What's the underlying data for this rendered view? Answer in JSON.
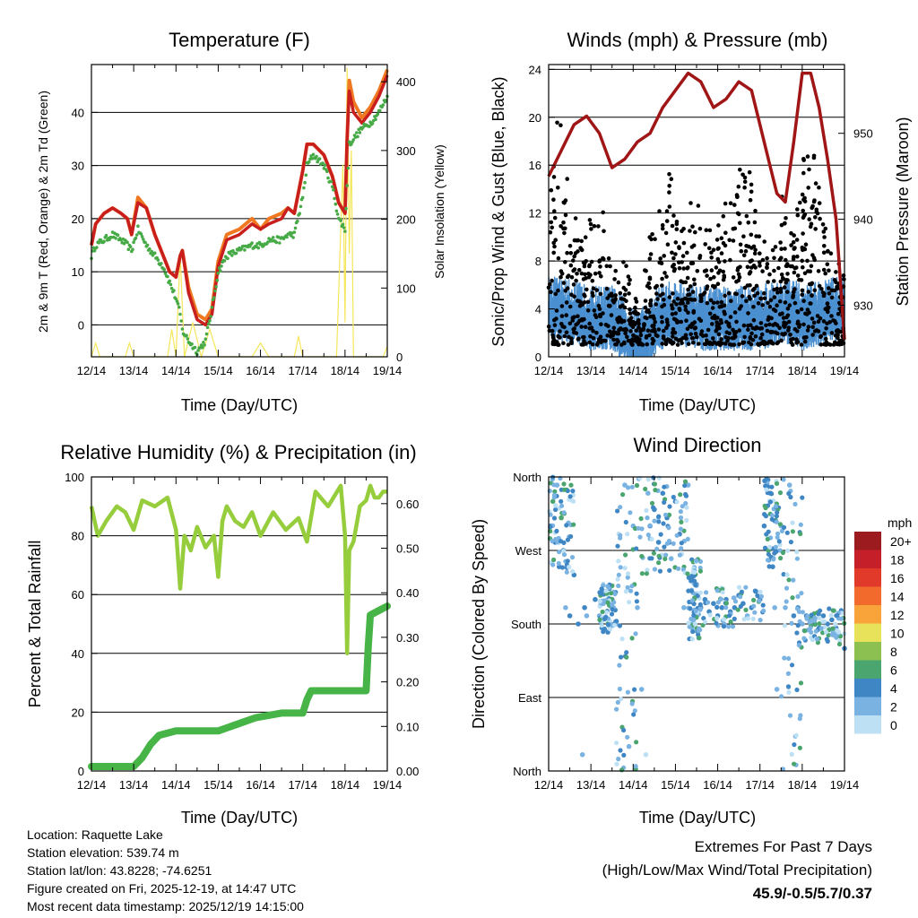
{
  "colors": {
    "temp2m": "#c81e1e",
    "temp9m": "#f07820",
    "dewpoint": "#46aa46",
    "solar": "#f5e65a",
    "wind": "#4a8fd0",
    "gust": "#000000",
    "pressure": "#a01616",
    "rh": "#96cd3c",
    "precip": "#46b446",
    "extremes_value": "#c02828"
  },
  "x_tick_labels": [
    "12/14",
    "13/14",
    "14/14",
    "15/14",
    "16/14",
    "17/14",
    "18/14",
    "19/14"
  ],
  "xlabel": "Time (Day/UTC)",
  "chart_data": [
    {
      "id": "temperature",
      "type": "line",
      "title": "Temperature (F)",
      "xlabel": "Time (Day/UTC)",
      "ylabel": "2m & 9m T (Red, Orange) & 2m Td (Green)",
      "y2label": "Solar Insolation (Yellow)",
      "xlim": [
        0,
        7
      ],
      "ylim": [
        -6,
        49
      ],
      "y2lim": [
        0,
        425
      ],
      "yticks": [
        0,
        10,
        20,
        30,
        40
      ],
      "y2ticks": [
        0,
        100,
        200,
        300,
        400
      ],
      "gridlines": [
        0,
        10,
        20,
        30,
        40
      ],
      "x": [
        0,
        0.1,
        0.3,
        0.5,
        0.7,
        0.85,
        0.95,
        1.1,
        1.3,
        1.5,
        1.7,
        1.85,
        2.0,
        2.1,
        2.15,
        2.3,
        2.5,
        2.7,
        2.85,
        3.0,
        3.2,
        3.5,
        3.8,
        4.0,
        4.2,
        4.5,
        4.65,
        4.8,
        5.0,
        5.1,
        5.25,
        5.5,
        5.7,
        5.85,
        6.0,
        6.05,
        6.1,
        6.2,
        6.4,
        6.6,
        6.8,
        7.0
      ],
      "series": [
        {
          "name": "2m T",
          "values": [
            15,
            19,
            21,
            22,
            21,
            20,
            17,
            23,
            22,
            17,
            13,
            10,
            9,
            13,
            14,
            6,
            1,
            0,
            2,
            11,
            16,
            17,
            19,
            18,
            19,
            20,
            22,
            21,
            29,
            34,
            34,
            32,
            28,
            23,
            21,
            35,
            44,
            40,
            38,
            40,
            43,
            47
          ]
        },
        {
          "name": "9m T",
          "values": [
            15,
            19,
            21,
            22,
            21,
            20,
            17,
            24,
            22,
            17,
            13,
            10,
            9,
            13,
            14,
            7,
            2,
            1,
            3,
            12,
            17,
            18,
            20,
            18,
            20,
            21,
            22,
            21,
            29,
            34,
            34,
            32,
            28,
            23,
            21,
            35,
            46,
            42,
            39,
            41,
            44,
            48
          ]
        },
        {
          "name": "2m Td",
          "values": [
            13,
            15,
            16,
            17,
            16,
            15,
            14,
            18,
            15,
            13,
            11,
            8,
            5,
            2,
            -1,
            -3,
            -5,
            -3,
            3,
            10,
            13,
            14,
            15,
            15,
            16,
            16,
            17,
            17,
            24,
            30,
            32,
            30,
            26,
            20,
            18,
            26,
            34,
            35,
            37,
            38,
            40,
            43
          ]
        },
        {
          "name": "Solar Insolation",
          "axis": "y2",
          "x": [
            0,
            0.1,
            0.2,
            0.3,
            0.8,
            0.9,
            1.0,
            1.8,
            1.9,
            2.0,
            2.1,
            2.2,
            2.4,
            2.6,
            2.8,
            3.0,
            3.8,
            4.0,
            4.2,
            4.8,
            4.9,
            5.0,
            5.8,
            5.95,
            6.0,
            6.05,
            6.1,
            6.15,
            6.2,
            6.3,
            6.9,
            7.0
          ],
          "values": [
            0,
            20,
            0,
            0,
            0,
            20,
            0,
            0,
            40,
            0,
            150,
            0,
            50,
            0,
            40,
            0,
            0,
            20,
            0,
            0,
            30,
            0,
            0,
            280,
            50,
            420,
            150,
            300,
            0,
            0,
            0,
            15
          ]
        }
      ]
    },
    {
      "id": "winds",
      "type": "line",
      "title": "Winds (mph) & Pressure (mb)",
      "xlabel": "Time (Day/UTC)",
      "ylabel": "Sonic/Prop Wind & Gust (Blue, Black)",
      "y2label": "Station Pressure (Maroon)",
      "xlim": [
        0,
        7
      ],
      "ylim": [
        0,
        24.4
      ],
      "y2lim": [
        924,
        958
      ],
      "yticks": [
        0,
        4,
        8,
        12,
        16,
        20,
        24
      ],
      "y2ticks": [
        930,
        940,
        950
      ],
      "gridlines": [
        4,
        8,
        12,
        16,
        20,
        24
      ],
      "series": [
        {
          "name": "Sonic/Prop Wind",
          "axis": "y",
          "x": [
            0,
            0.5,
            1,
            1.5,
            1.8,
            2,
            2.3,
            2.6,
            3,
            3.5,
            4,
            4.5,
            5,
            5.5,
            5.8,
            6,
            6.5,
            7
          ],
          "values": [
            4,
            3.5,
            3,
            3,
            2,
            1,
            1.5,
            3,
            3.5,
            3,
            3,
            3,
            3,
            3.5,
            3.5,
            3,
            3.5,
            4
          ]
        },
        {
          "name": "Station Pressure",
          "axis": "y2",
          "x": [
            0,
            0.2,
            0.6,
            0.9,
            1.2,
            1.5,
            1.8,
            2.1,
            2.4,
            2.7,
            3.0,
            3.3,
            3.6,
            3.9,
            4.2,
            4.5,
            4.8,
            5.0,
            5.2,
            5.4,
            5.6,
            5.8,
            6.0,
            6.2,
            6.4,
            6.6,
            6.8,
            7.0
          ],
          "values": [
            945,
            947,
            951,
            952,
            950,
            946,
            947,
            949,
            950,
            953,
            955,
            957,
            956,
            953,
            954,
            956,
            955,
            951,
            947,
            943,
            942,
            949,
            957,
            957,
            953,
            947,
            940,
            926
          ]
        }
      ],
      "scatter": {
        "name": "Gust",
        "note": "hourly gust values (mph), 8 per day",
        "values": [
          13,
          15,
          20,
          12,
          14,
          16,
          11,
          10,
          9,
          7,
          11,
          12,
          10,
          13,
          8,
          6,
          7,
          5,
          9,
          6,
          4,
          5,
          3,
          8,
          9,
          11,
          12,
          10,
          13,
          15,
          11,
          12,
          10,
          8,
          12,
          11,
          13,
          9,
          10,
          11,
          9,
          10,
          11,
          13,
          12,
          14,
          15,
          16,
          16,
          14,
          12,
          10,
          9,
          8,
          8,
          11,
          13,
          11,
          9,
          10,
          12,
          14,
          16,
          18,
          16,
          14,
          12,
          10,
          9,
          8,
          7,
          6
        ]
      }
    },
    {
      "id": "humidity",
      "type": "line",
      "title": "Relative Humidity (%) & Precipitation (in)",
      "xlabel": "Time (Day/UTC)",
      "ylabel": "Percent & Total Rainfall",
      "xlim": [
        0,
        7
      ],
      "ylim": [
        0,
        100
      ],
      "y2lim": [
        0,
        0.66
      ],
      "yticks": [
        0,
        20,
        40,
        60,
        80,
        100
      ],
      "y2ticks": [
        0.0,
        0.1,
        0.2,
        0.3,
        0.4,
        0.5,
        0.6
      ],
      "y2ticklabels": [
        "0.00",
        "0.10",
        "0.20",
        "0.30",
        "0.40",
        "0.50",
        "0.60"
      ],
      "gridlines": [
        20,
        40,
        60,
        80
      ],
      "series": [
        {
          "name": "Relative Humidity",
          "axis": "y",
          "x": [
            0,
            0.15,
            0.35,
            0.6,
            0.8,
            1.0,
            1.2,
            1.5,
            1.8,
            2.0,
            2.1,
            2.2,
            2.35,
            2.5,
            2.7,
            2.9,
            3.0,
            3.1,
            3.2,
            3.4,
            3.6,
            3.8,
            4.0,
            4.3,
            4.6,
            4.9,
            5.1,
            5.3,
            5.6,
            5.9,
            6.0,
            6.05,
            6.1,
            6.2,
            6.35,
            6.5,
            6.6,
            6.7,
            6.8,
            6.9,
            7.0
          ],
          "values": [
            90,
            80,
            85,
            90,
            88,
            82,
            92,
            90,
            93,
            82,
            62,
            80,
            75,
            83,
            76,
            80,
            66,
            85,
            90,
            85,
            83,
            88,
            80,
            88,
            82,
            86,
            78,
            95,
            90,
            97,
            80,
            40,
            75,
            78,
            90,
            92,
            97,
            93,
            93,
            95,
            95
          ]
        },
        {
          "name": "Total Precipitation",
          "axis": "y2",
          "x": [
            0,
            1.0,
            1.1,
            1.2,
            1.4,
            1.5,
            1.6,
            2.0,
            2.5,
            3.0,
            3.3,
            3.6,
            3.9,
            4.5,
            5.0,
            5.1,
            5.2,
            5.4,
            5.6,
            6.0,
            6.5,
            6.55,
            6.6,
            6.8,
            7.0
          ],
          "values": [
            0.01,
            0.01,
            0.02,
            0.03,
            0.06,
            0.07,
            0.08,
            0.09,
            0.09,
            0.09,
            0.1,
            0.11,
            0.12,
            0.13,
            0.13,
            0.16,
            0.18,
            0.18,
            0.18,
            0.18,
            0.18,
            0.28,
            0.35,
            0.36,
            0.37
          ]
        }
      ]
    },
    {
      "id": "wind_direction",
      "type": "scatter",
      "title": "Wind Direction",
      "xlabel": "Time (Day/UTC)",
      "ylabel": "Direction (Colored By Speed)",
      "xlim": [
        0,
        7
      ],
      "ylim": [
        0,
        360
      ],
      "ytick_values": [
        0,
        90,
        180,
        270,
        360
      ],
      "ytick_labels": [
        "North",
        "East",
        "South",
        "West",
        "North"
      ],
      "points_note": "direction (deg) per sample, colored by speed (mph)",
      "points": [
        [
          0.05,
          300,
          4
        ],
        [
          0.1,
          330,
          6
        ],
        [
          0.15,
          280,
          3
        ],
        [
          0.2,
          350,
          2
        ],
        [
          0.25,
          250,
          4
        ],
        [
          0.3,
          310,
          5
        ],
        [
          0.35,
          270,
          3
        ],
        [
          0.4,
          200,
          2
        ],
        [
          0.5,
          190,
          3
        ],
        [
          0.6,
          240,
          4
        ],
        [
          0.7,
          180,
          3
        ],
        [
          0.8,
          20,
          2
        ],
        [
          0.85,
          200,
          3
        ],
        [
          0.9,
          190,
          2
        ],
        [
          1.1,
          210,
          3
        ],
        [
          1.2,
          190,
          2
        ],
        [
          1.3,
          220,
          4
        ],
        [
          1.4,
          170,
          3
        ],
        [
          1.5,
          210,
          3
        ],
        [
          1.6,
          180,
          2
        ],
        [
          1.8,
          350,
          1
        ],
        [
          1.9,
          30,
          1
        ],
        [
          2.0,
          300,
          2
        ],
        [
          2.1,
          200,
          1
        ],
        [
          2.2,
          100,
          1
        ],
        [
          2.3,
          20,
          0
        ],
        [
          2.35,
          340,
          1
        ],
        [
          2.4,
          300,
          3
        ],
        [
          2.5,
          320,
          4
        ],
        [
          2.6,
          280,
          3
        ],
        [
          2.7,
          340,
          4
        ],
        [
          2.8,
          310,
          3
        ],
        [
          2.9,
          260,
          2
        ],
        [
          3.0,
          330,
          4
        ],
        [
          3.1,
          290,
          3
        ],
        [
          3.2,
          200,
          2
        ],
        [
          3.3,
          350,
          1
        ],
        [
          3.4,
          180,
          2
        ],
        [
          3.5,
          190,
          3
        ],
        [
          3.6,
          200,
          3
        ],
        [
          3.7,
          210,
          3
        ],
        [
          3.8,
          195,
          3
        ],
        [
          3.9,
          205,
          3
        ],
        [
          4.0,
          190,
          3
        ],
        [
          4.1,
          200,
          3
        ],
        [
          4.2,
          210,
          3
        ],
        [
          4.3,
          195,
          3
        ],
        [
          4.4,
          200,
          3
        ],
        [
          4.5,
          215,
          3
        ],
        [
          4.6,
          205,
          3
        ],
        [
          4.7,
          190,
          2
        ],
        [
          4.8,
          200,
          3
        ],
        [
          4.9,
          220,
          3
        ],
        [
          5.0,
          210,
          3
        ],
        [
          5.1,
          300,
          4
        ],
        [
          5.2,
          270,
          5
        ],
        [
          5.25,
          340,
          3
        ],
        [
          5.3,
          250,
          4
        ],
        [
          5.35,
          200,
          2
        ],
        [
          5.4,
          100,
          2
        ],
        [
          5.5,
          300,
          2
        ],
        [
          5.6,
          200,
          2
        ],
        [
          5.7,
          350,
          1
        ],
        [
          5.8,
          190,
          3
        ],
        [
          5.9,
          200,
          3
        ],
        [
          6.0,
          180,
          2
        ],
        [
          6.1,
          190,
          3
        ],
        [
          6.2,
          185,
          3
        ],
        [
          6.3,
          180,
          3
        ],
        [
          6.4,
          175,
          3
        ],
        [
          6.5,
          190,
          3
        ],
        [
          6.6,
          180,
          3
        ],
        [
          6.7,
          185,
          4
        ],
        [
          6.8,
          175,
          4
        ],
        [
          6.9,
          165,
          5
        ],
        [
          7.0,
          150,
          4
        ]
      ],
      "colorbar": {
        "title": "mph",
        "labels": [
          "20+",
          "18",
          "16",
          "14",
          "12",
          "10",
          "8",
          "6",
          "4",
          "2",
          "0"
        ],
        "colors": [
          "#9b1b1e",
          "#c5202a",
          "#e23a2a",
          "#f26a2c",
          "#f8a43a",
          "#e8e25a",
          "#8cc152",
          "#4aa56e",
          "#3f86c4",
          "#7ab3e2",
          "#bde0f5"
        ]
      }
    }
  ],
  "station_info": {
    "location": "Location: Raquette Lake",
    "elevation": "Station elevation: 539.74 m",
    "latlon": "Station lat/lon: 43.8228; -74.6251",
    "created": "Figure created on Fri, 2025-12-19, at 14:47 UTC",
    "timestamp": "Most recent data timestamp: 2025/12/19 14:15:00"
  },
  "extremes": {
    "title": "Extremes For Past 7 Days",
    "subtitle": "(High/Low/Max Wind/Total Precipitation)",
    "value": "45.9/-0.5/5.7/0.37"
  }
}
